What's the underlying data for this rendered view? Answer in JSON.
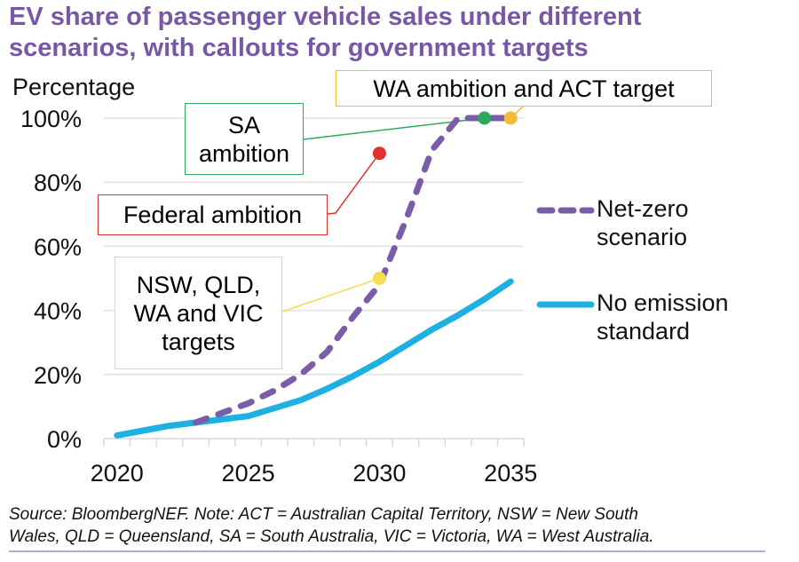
{
  "title": {
    "line1": "EV share of passenger vehicle sales under different",
    "line2": "scenarios, with callouts for government targets"
  },
  "footer": {
    "line1": "Source: BloombergNEF. Note: ACT = Australian Capital Territory, NSW = New South",
    "line2": "Wales, QLD = Queensland, SA = South Australia, VIC = Victoria, WA = West Australia."
  },
  "colors": {
    "title": "#7858a6",
    "net_zero": "#7a5ca8",
    "no_emission": "#1eb0e0",
    "gridline": "#e2e2e2",
    "callout_green": "#2bab5a",
    "callout_red": "#e03131",
    "callout_yellow": "#f5dd55",
    "callout_orange": "#f5b935"
  },
  "chart_data": {
    "type": "line",
    "title": "EV share of passenger vehicle sales under different scenarios, with callouts for government targets",
    "xlabel": "",
    "ylabel": "Percentage",
    "x": [
      2020,
      2021,
      2022,
      2023,
      2024,
      2025,
      2026,
      2027,
      2028,
      2029,
      2030,
      2031,
      2032,
      2033,
      2034,
      2035
    ],
    "xticks": [
      "2020",
      "2025",
      "2030",
      "2035"
    ],
    "yticks": [
      "0%",
      "20%",
      "40%",
      "60%",
      "80%",
      "100%"
    ],
    "ylim": [
      0,
      100
    ],
    "grid": true,
    "legend_position": "right",
    "series": [
      {
        "name": "Net-zero scenario",
        "legend_lines": [
          "Net-zero",
          "scenario"
        ],
        "style": "dashed",
        "color": "#7a5ca8",
        "values": [
          null,
          null,
          null,
          5,
          8,
          11,
          15,
          20,
          27,
          38,
          48,
          68,
          90,
          100,
          100,
          100
        ]
      },
      {
        "name": "No emission standard",
        "legend_lines": [
          "No emission",
          "standard"
        ],
        "style": "solid",
        "color": "#1eb0e0",
        "values": [
          1,
          2.5,
          4,
          5,
          6,
          7,
          9.5,
          12,
          15.5,
          19.5,
          24,
          29,
          34,
          38.5,
          43.5,
          49
        ]
      }
    ],
    "annotations": [
      {
        "label_lines": [
          "WA ambition and ACT target"
        ],
        "x": 2035,
        "y": 100,
        "color": "#f5b935"
      },
      {
        "label_lines": [
          "SA",
          "ambition"
        ],
        "x": 2034,
        "y": 100,
        "color": "#2bab5a"
      },
      {
        "label_lines": [
          "Federal ambition"
        ],
        "x": 2030,
        "y": 89,
        "color": "#e03131"
      },
      {
        "label_lines": [
          "NSW, QLD,",
          "WA and VIC",
          "targets"
        ],
        "x": 2030,
        "y": 50,
        "color": "#f5dd55"
      }
    ]
  }
}
